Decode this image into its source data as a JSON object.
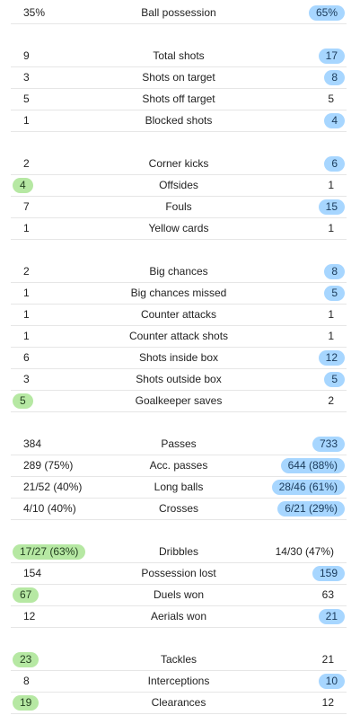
{
  "groups": [
    {
      "rows": [
        {
          "left": "35%",
          "label": "Ball possession",
          "right": "65%",
          "hl": "right"
        }
      ]
    },
    {
      "rows": [
        {
          "left": "9",
          "label": "Total shots",
          "right": "17",
          "hl": "right"
        },
        {
          "left": "3",
          "label": "Shots on target",
          "right": "8",
          "hl": "right"
        },
        {
          "left": "5",
          "label": "Shots off target",
          "right": "5",
          "hl": "none"
        },
        {
          "left": "1",
          "label": "Blocked shots",
          "right": "4",
          "hl": "right"
        }
      ]
    },
    {
      "rows": [
        {
          "left": "2",
          "label": "Corner kicks",
          "right": "6",
          "hl": "right"
        },
        {
          "left": "4",
          "label": "Offsides",
          "right": "1",
          "hl": "left"
        },
        {
          "left": "7",
          "label": "Fouls",
          "right": "15",
          "hl": "right"
        },
        {
          "left": "1",
          "label": "Yellow cards",
          "right": "1",
          "hl": "none"
        }
      ]
    },
    {
      "rows": [
        {
          "left": "2",
          "label": "Big chances",
          "right": "8",
          "hl": "right"
        },
        {
          "left": "1",
          "label": "Big chances missed",
          "right": "5",
          "hl": "right"
        },
        {
          "left": "1",
          "label": "Counter attacks",
          "right": "1",
          "hl": "none"
        },
        {
          "left": "1",
          "label": "Counter attack shots",
          "right": "1",
          "hl": "none"
        },
        {
          "left": "6",
          "label": "Shots inside box",
          "right": "12",
          "hl": "right"
        },
        {
          "left": "3",
          "label": "Shots outside box",
          "right": "5",
          "hl": "right"
        },
        {
          "left": "5",
          "label": "Goalkeeper saves",
          "right": "2",
          "hl": "left"
        }
      ]
    },
    {
      "rows": [
        {
          "left": "384",
          "label": "Passes",
          "right": "733",
          "hl": "right"
        },
        {
          "left": "289 (75%)",
          "label": "Acc. passes",
          "right": "644 (88%)",
          "hl": "right"
        },
        {
          "left": "21/52 (40%)",
          "label": "Long balls",
          "right": "28/46 (61%)",
          "hl": "right"
        },
        {
          "left": "4/10 (40%)",
          "label": "Crosses",
          "right": "6/21 (29%)",
          "hl": "right"
        }
      ]
    },
    {
      "rows": [
        {
          "left": "17/27 (63%)",
          "label": "Dribbles",
          "right": "14/30 (47%)",
          "hl": "left"
        },
        {
          "left": "154",
          "label": "Possession lost",
          "right": "159",
          "hl": "right"
        },
        {
          "left": "67",
          "label": "Duels won",
          "right": "63",
          "hl": "left"
        },
        {
          "left": "12",
          "label": "Aerials won",
          "right": "21",
          "hl": "right"
        }
      ]
    },
    {
      "rows": [
        {
          "left": "23",
          "label": "Tackles",
          "right": "21",
          "hl": "left"
        },
        {
          "left": "8",
          "label": "Interceptions",
          "right": "10",
          "hl": "right"
        },
        {
          "left": "19",
          "label": "Clearances",
          "right": "12",
          "hl": "left"
        }
      ]
    }
  ],
  "colors": {
    "home_highlight": "#b6e8a3",
    "away_highlight": "#a7d6ff",
    "divider": "#e6e6e6"
  }
}
